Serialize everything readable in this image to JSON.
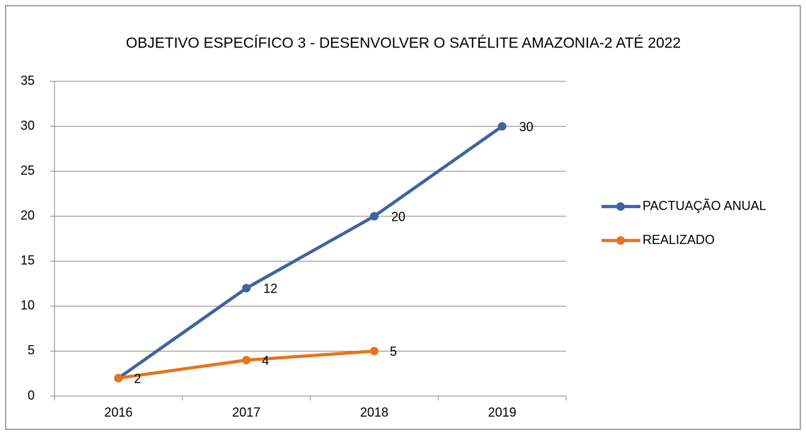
{
  "chart_data": {
    "type": "line",
    "title": "OBJETIVO ESPECÍFICO 3 - DESENVOLVER O SATÉLITE AMAZONIA-2 ATÉ 2022",
    "categories": [
      "2016",
      "2017",
      "2018",
      "2019"
    ],
    "series": [
      {
        "name": "PACTUAÇÃO ANUAL",
        "color": "#3c649f",
        "values": [
          2,
          12,
          20,
          30
        ],
        "value_labels": [
          null,
          "12",
          "20",
          "30"
        ]
      },
      {
        "name": "REALIZADO",
        "color": "#e8731a",
        "values": [
          2,
          4,
          5,
          null
        ],
        "value_labels": [
          "2",
          "4",
          "5",
          null
        ]
      }
    ],
    "ylim": [
      0,
      35
    ],
    "yticks": [
      0,
      5,
      10,
      15,
      20,
      25,
      30,
      35
    ],
    "grid": true,
    "legend": "right"
  }
}
